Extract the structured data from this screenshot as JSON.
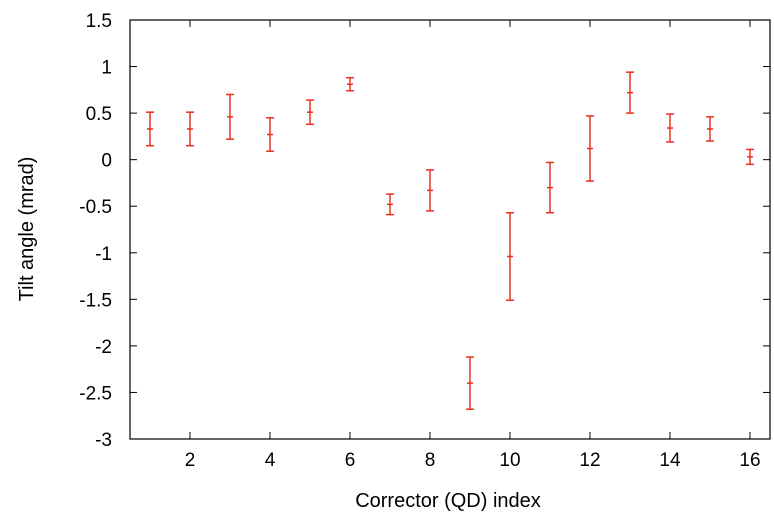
{
  "chart_data": {
    "type": "scatter",
    "title": "",
    "xlabel": "Corrector (QD) index",
    "ylabel": "Tilt angle (mrad)",
    "xlim": [
      0.5,
      16.5
    ],
    "ylim": [
      -3,
      1.5
    ],
    "x_ticks": [
      2,
      4,
      6,
      8,
      10,
      12,
      14,
      16
    ],
    "x_tick_labels": [
      "2",
      "4",
      "6",
      "8",
      "10",
      "12",
      "14",
      "16"
    ],
    "y_ticks": [
      -3,
      -2.5,
      -2,
      -1.5,
      -1,
      -0.5,
      0,
      0.5,
      1,
      1.5
    ],
    "y_tick_labels": [
      "-3",
      "-2.5",
      "-2",
      "-1.5",
      "-1",
      "-0.5",
      "0",
      "0.5",
      "1",
      "1.5"
    ],
    "grid": false,
    "legend": "none",
    "error_bars": true,
    "color": "#e8321e",
    "series": [
      {
        "points": [
          {
            "x": 1,
            "y": 0.33,
            "err": 0.18
          },
          {
            "x": 2,
            "y": 0.33,
            "err": 0.18
          },
          {
            "x": 3,
            "y": 0.46,
            "err": 0.24
          },
          {
            "x": 4,
            "y": 0.27,
            "err": 0.18
          },
          {
            "x": 5,
            "y": 0.51,
            "err": 0.13
          },
          {
            "x": 6,
            "y": 0.81,
            "err": 0.07
          },
          {
            "x": 7,
            "y": -0.48,
            "err": 0.11
          },
          {
            "x": 8,
            "y": -0.33,
            "err": 0.22
          },
          {
            "x": 9,
            "y": -2.4,
            "err": 0.28
          },
          {
            "x": 10,
            "y": -1.04,
            "err": 0.47
          },
          {
            "x": 11,
            "y": -0.3,
            "err": 0.27
          },
          {
            "x": 12,
            "y": 0.12,
            "err": 0.35
          },
          {
            "x": 13,
            "y": 0.72,
            "err": 0.22
          },
          {
            "x": 14,
            "y": 0.34,
            "err": 0.15
          },
          {
            "x": 15,
            "y": 0.33,
            "err": 0.13
          },
          {
            "x": 16,
            "y": 0.03,
            "err": 0.08
          }
        ]
      }
    ]
  }
}
